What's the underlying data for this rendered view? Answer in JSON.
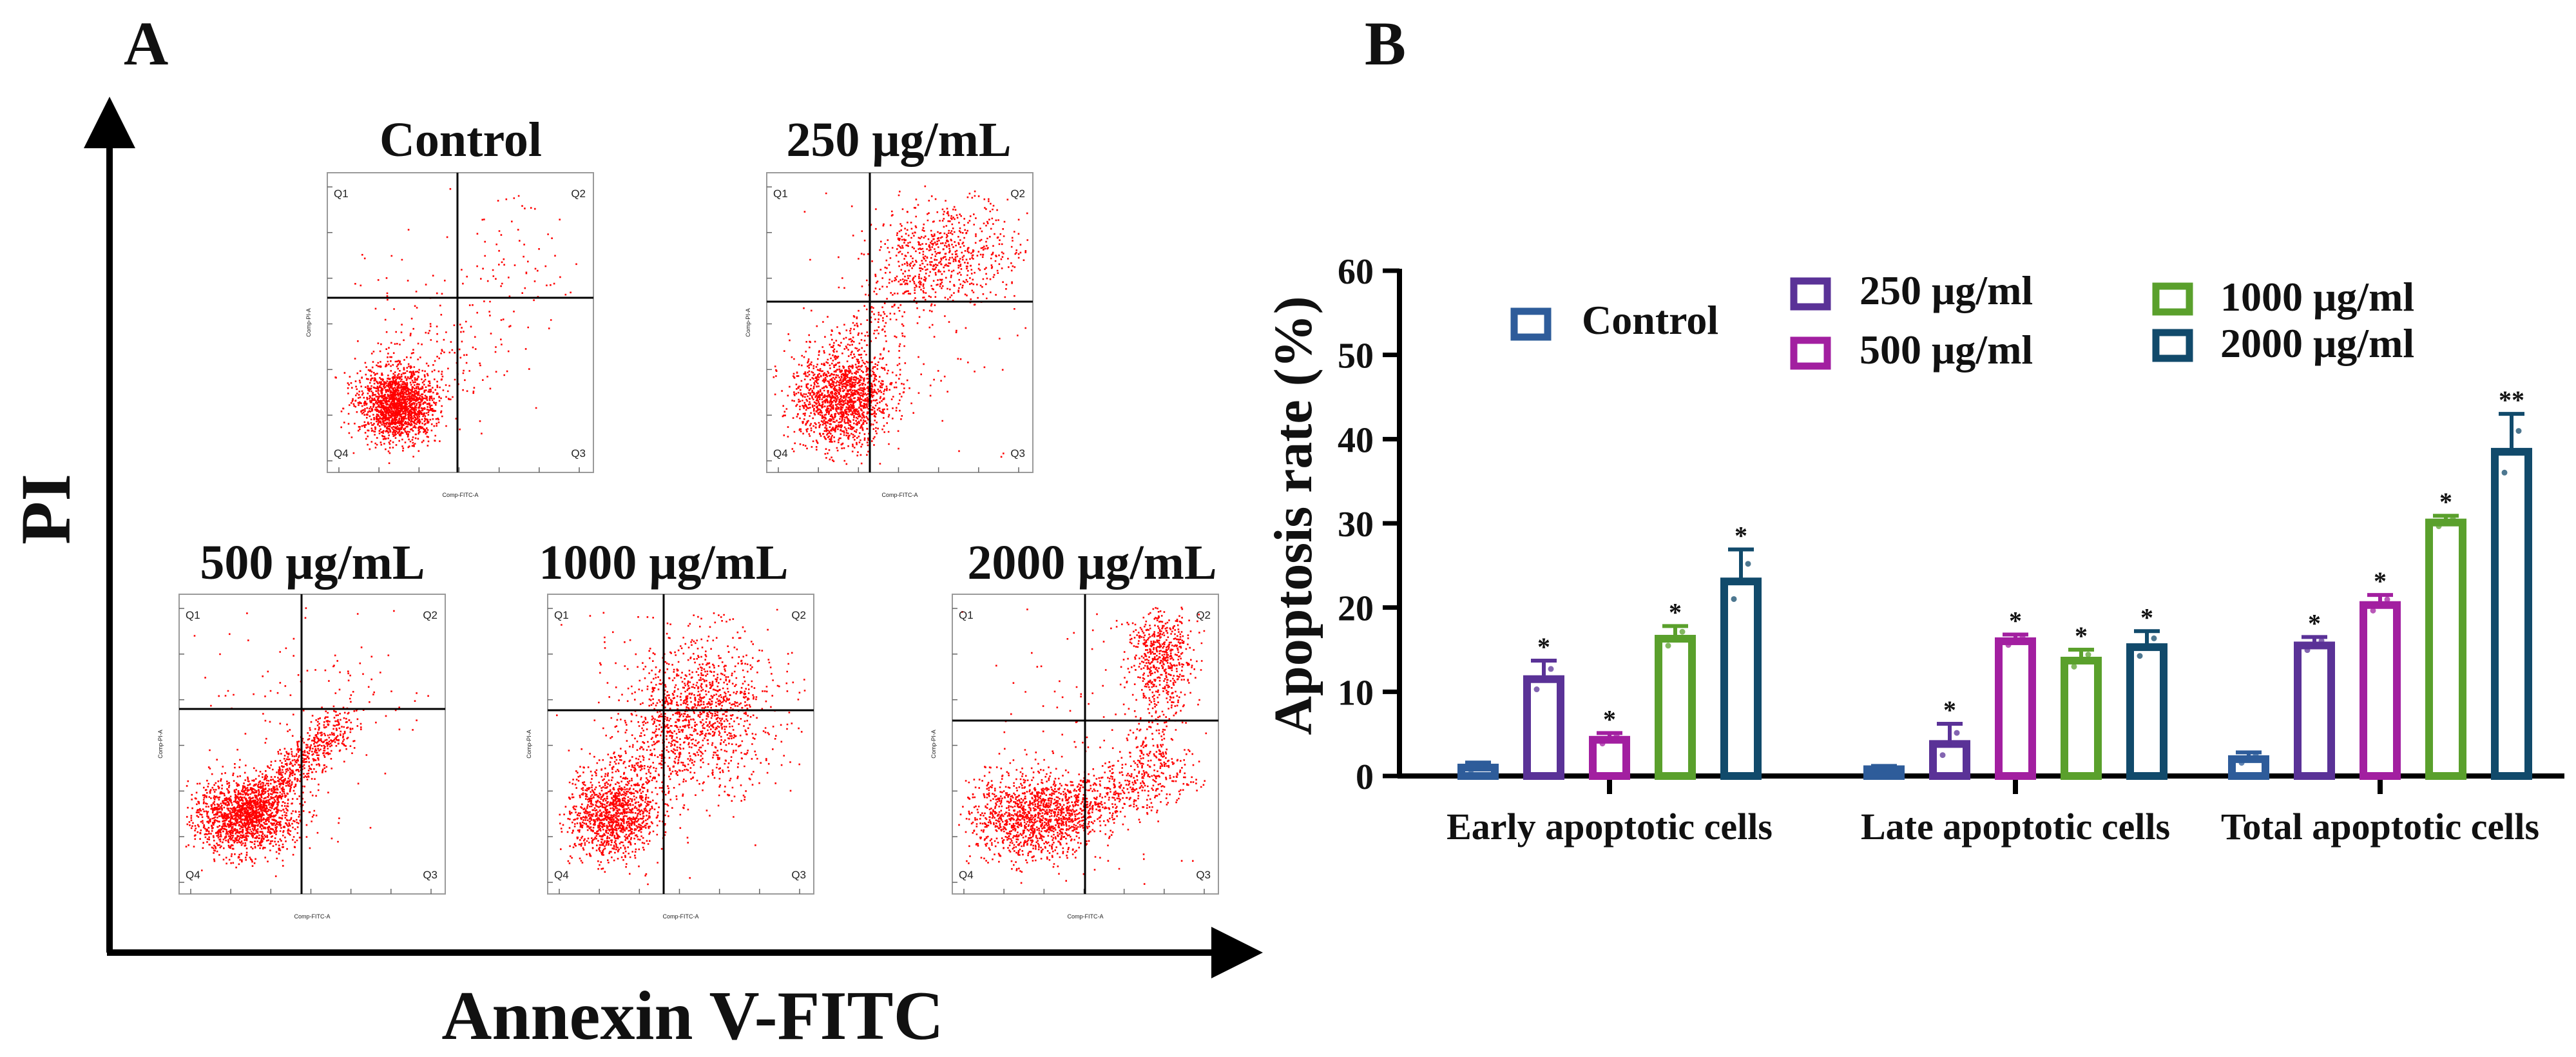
{
  "panel_a": {
    "label": "A",
    "y_axis_label": "PI",
    "x_axis_label": "Annexin V-FITC",
    "plots": [
      {
        "title": "Control",
        "quadrants": [
          "Q1",
          "Q2",
          "Q3",
          "Q4"
        ],
        "x_label": "Comp-FITC-A",
        "y_label": "Comp-PI-A"
      },
      {
        "title": "250 μg/mL",
        "quadrants": [
          "Q1",
          "Q2",
          "Q3",
          "Q4"
        ],
        "x_label": "Comp-FITC-A",
        "y_label": "Comp-PI-A"
      },
      {
        "title": "500 μg/mL",
        "quadrants": [
          "Q1",
          "Q2",
          "Q3",
          "Q4"
        ],
        "x_label": "Comp-FITC-A",
        "y_label": "Comp-PI-A"
      },
      {
        "title": "1000 μg/mL",
        "quadrants": [
          "Q1",
          "Q2",
          "Q3",
          "Q4"
        ],
        "x_label": "Comp-FITC-A",
        "y_label": "Comp-PI-A"
      },
      {
        "title": "2000 μg/mL",
        "quadrants": [
          "Q1",
          "Q2",
          "Q3",
          "Q4"
        ],
        "x_label": "Comp-FITC-A",
        "y_label": "Comp-PI-A"
      }
    ],
    "dot_color": "#ff0000"
  },
  "chart_data": {
    "type": "bar",
    "panel_label": "B",
    "title": "",
    "xlabel": "",
    "ylabel": "Apoptosis rate (%)",
    "ylim": [
      0,
      60
    ],
    "yticks": [
      0,
      10,
      20,
      30,
      40,
      50,
      60
    ],
    "categories": [
      "Early apoptotic cells",
      "Late apoptotic cells",
      "Total apoptotic cells"
    ],
    "series": [
      {
        "name": "Control",
        "color": "#2e5c9a",
        "values": [
          1.0,
          0.8,
          2.0
        ],
        "errors": [
          0.6,
          0.4,
          0.8
        ],
        "significance": [
          "",
          "",
          ""
        ]
      },
      {
        "name": "250 μg/ml",
        "color": "#5a3297",
        "values": [
          11.5,
          3.8,
          15.5
        ],
        "errors": [
          2.2,
          2.4,
          1.0
        ],
        "significance": [
          "*",
          "*",
          "*"
        ]
      },
      {
        "name": "500 μg/ml",
        "color": "#a21fa0",
        "values": [
          4.3,
          16.0,
          20.3
        ],
        "errors": [
          0.8,
          0.8,
          1.2
        ],
        "significance": [
          "*",
          "*",
          "*"
        ]
      },
      {
        "name": "1000 μg/ml",
        "color": "#5aa02c",
        "values": [
          16.3,
          13.7,
          30.1
        ],
        "errors": [
          1.5,
          1.3,
          0.8
        ],
        "significance": [
          "*",
          "*",
          "*"
        ]
      },
      {
        "name": "2000 μg/ml",
        "color": "#114a6b",
        "values": [
          23.1,
          15.3,
          38.5
        ],
        "errors": [
          3.8,
          1.9,
          4.5
        ],
        "significance": [
          "*",
          "*",
          "**"
        ]
      }
    ],
    "legend_position": "top"
  }
}
